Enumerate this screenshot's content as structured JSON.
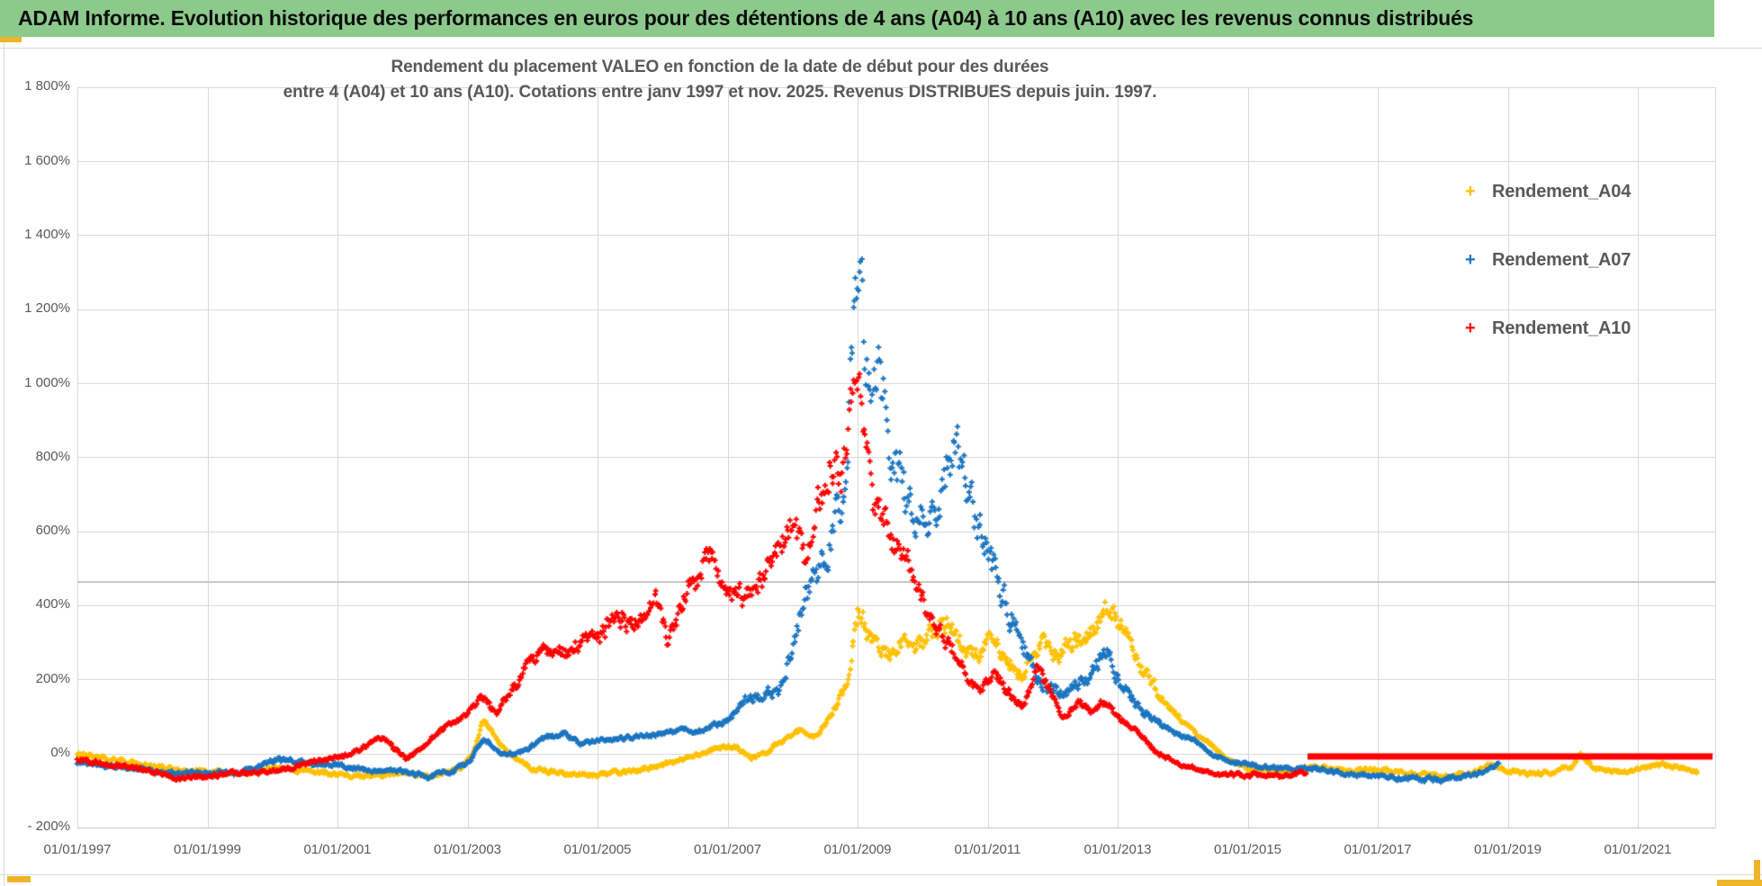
{
  "window": {
    "header_title": "ADAM Informe. Evolution historique des performances en euros pour des détentions de 4 ans (A04) à 10 ans (A10) avec les revenus connus distribués"
  },
  "colors": {
    "header_bg": "#8CCA8C",
    "grid": "#DADADA",
    "axis_text": "#595959",
    "title_text": "#595959",
    "reference_line": "#C7C7C7",
    "accent_orange": "#F0B428",
    "series_a04": "#FFC000",
    "series_a07": "#1B74C0",
    "series_a10": "#FF0000"
  },
  "chart_data": {
    "type": "scatter",
    "title": "Rendement du placement VALEO en fonction de la date de début pour des durées",
    "subtitle": "entre 4 (A04) et 10 ans (A10). Cotations entre janv 1997 et nov. 2025. Revenus DISTRIBUES depuis juin. 1997.",
    "xlabel": "",
    "ylabel": "",
    "grid": true,
    "legend_position": "right-top",
    "x_axis": {
      "tick_labels": [
        "01/01/1997",
        "01/01/1999",
        "01/01/2001",
        "01/01/2003",
        "01/01/2005",
        "01/01/2007",
        "01/01/2009",
        "01/01/2011",
        "01/01/2013",
        "01/01/2015",
        "01/01/2017",
        "01/01/2019",
        "01/01/2021"
      ],
      "tick_years": [
        1997,
        1999,
        2001,
        2003,
        2005,
        2007,
        2009,
        2011,
        2013,
        2015,
        2017,
        2019,
        2021
      ],
      "range_years": [
        1997.0,
        2022.2
      ]
    },
    "y_axis": {
      "tick_labels": [
        "1 800%",
        "1 600%",
        "1 400%",
        "1 200%",
        "1 000%",
        "800%",
        "600%",
        "400%",
        "200%",
        "0%",
        "- 200%"
      ],
      "tick_values": [
        1800,
        1600,
        1400,
        1200,
        1000,
        800,
        600,
        400,
        200,
        0,
        -200
      ],
      "range_pct": [
        -200,
        1800
      ]
    },
    "reference_line_pct": 465,
    "series": [
      {
        "name": "Rendement_A04",
        "color": "#FFC000",
        "marker": "plus",
        "start": 1997.0,
        "end": 2021.92,
        "dispersion": 0.11,
        "envelope": [
          [
            1997,
            2
          ],
          [
            1997.4,
            -12
          ],
          [
            1997.8,
            -22
          ],
          [
            1998.3,
            -36
          ],
          [
            1998.7,
            -48
          ],
          [
            1999.2,
            -50
          ],
          [
            1999.6,
            -52
          ],
          [
            2000.1,
            -38
          ],
          [
            2000.5,
            -46
          ],
          [
            2001,
            -56
          ],
          [
            2001.5,
            -60
          ],
          [
            2002,
            -52
          ],
          [
            2002.5,
            -58
          ],
          [
            2002.9,
            -40
          ],
          [
            2003.1,
            10
          ],
          [
            2003.25,
            92
          ],
          [
            2003.45,
            40
          ],
          [
            2003.7,
            -12
          ],
          [
            2004,
            -40
          ],
          [
            2004.5,
            -54
          ],
          [
            2005,
            -56
          ],
          [
            2005.5,
            -48
          ],
          [
            2006,
            -30
          ],
          [
            2006.4,
            -8
          ],
          [
            2006.8,
            12
          ],
          [
            2007.1,
            22
          ],
          [
            2007.35,
            -12
          ],
          [
            2007.6,
            5
          ],
          [
            2007.9,
            42
          ],
          [
            2008.1,
            62
          ],
          [
            2008.35,
            45
          ],
          [
            2008.6,
            105
          ],
          [
            2008.85,
            195
          ],
          [
            2009,
            385
          ],
          [
            2009.15,
            335
          ],
          [
            2009.3,
            280
          ],
          [
            2009.5,
            268
          ],
          [
            2009.7,
            298
          ],
          [
            2009.9,
            278
          ],
          [
            2010.1,
            325
          ],
          [
            2010.35,
            355
          ],
          [
            2010.6,
            300
          ],
          [
            2010.85,
            262
          ],
          [
            2011.05,
            325
          ],
          [
            2011.3,
            252
          ],
          [
            2011.55,
            215
          ],
          [
            2011.8,
            298
          ],
          [
            2012.1,
            268
          ],
          [
            2012.35,
            305
          ],
          [
            2012.6,
            338
          ],
          [
            2012.85,
            398
          ],
          [
            2013.1,
            338
          ],
          [
            2013.4,
            220
          ],
          [
            2013.7,
            148
          ],
          [
            2014,
            88
          ],
          [
            2014.3,
            40
          ],
          [
            2014.7,
            -15
          ],
          [
            2015,
            -40
          ],
          [
            2015.5,
            -52
          ],
          [
            2015.9,
            -40
          ],
          [
            2016.1,
            -36
          ],
          [
            2016.5,
            -48
          ],
          [
            2017,
            -42
          ],
          [
            2017.5,
            -54
          ],
          [
            2018,
            -60
          ],
          [
            2018.4,
            -52
          ],
          [
            2018.75,
            -30
          ],
          [
            2019,
            -46
          ],
          [
            2019.3,
            -56
          ],
          [
            2019.7,
            -48
          ],
          [
            2020,
            -32
          ],
          [
            2020.12,
            0
          ],
          [
            2020.3,
            -36
          ],
          [
            2020.6,
            -50
          ],
          [
            2021,
            -42
          ],
          [
            2021.3,
            -28
          ],
          [
            2021.6,
            -38
          ],
          [
            2021.92,
            -48
          ]
        ]
      },
      {
        "name": "Rendement_A07",
        "color": "#1B74C0",
        "marker": "plus",
        "start": 1997.0,
        "end": 2018.87,
        "dispersion": 0.125,
        "envelope": [
          [
            1997,
            -25
          ],
          [
            1997.5,
            -33
          ],
          [
            1998,
            -42
          ],
          [
            1998.5,
            -55
          ],
          [
            1999,
            -50
          ],
          [
            1999.5,
            -52
          ],
          [
            2000.05,
            -15
          ],
          [
            2000.4,
            -22
          ],
          [
            2000.7,
            -30
          ],
          [
            2001,
            -30
          ],
          [
            2001.5,
            -46
          ],
          [
            2002,
            -48
          ],
          [
            2002.4,
            -62
          ],
          [
            2002.8,
            -45
          ],
          [
            2003,
            -25
          ],
          [
            2003.25,
            40
          ],
          [
            2003.5,
            6
          ],
          [
            2003.8,
            0
          ],
          [
            2004.2,
            45
          ],
          [
            2004.5,
            55
          ],
          [
            2004.75,
            22
          ],
          [
            2005,
            38
          ],
          [
            2005.4,
            42
          ],
          [
            2005.8,
            50
          ],
          [
            2006.2,
            60
          ],
          [
            2006.6,
            64
          ],
          [
            2007,
            92
          ],
          [
            2007.25,
            150
          ],
          [
            2007.5,
            160
          ],
          [
            2007.8,
            168
          ],
          [
            2008,
            295
          ],
          [
            2008.2,
            415
          ],
          [
            2008.45,
            515
          ],
          [
            2008.7,
            640
          ],
          [
            2008.85,
            840
          ],
          [
            2008.95,
            1230
          ],
          [
            2009.02,
            1390
          ],
          [
            2009.1,
            1140
          ],
          [
            2009.2,
            980
          ],
          [
            2009.35,
            995
          ],
          [
            2009.5,
            855
          ],
          [
            2009.65,
            760
          ],
          [
            2009.8,
            700
          ],
          [
            2010,
            625
          ],
          [
            2010.2,
            648
          ],
          [
            2010.4,
            795
          ],
          [
            2010.5,
            835
          ],
          [
            2010.65,
            720
          ],
          [
            2010.8,
            640
          ],
          [
            2011,
            560
          ],
          [
            2011.15,
            470
          ],
          [
            2011.3,
            400
          ],
          [
            2011.5,
            300
          ],
          [
            2011.7,
            230
          ],
          [
            2011.95,
            172
          ],
          [
            2012.2,
            170
          ],
          [
            2012.45,
            192
          ],
          [
            2012.7,
            248
          ],
          [
            2012.85,
            268
          ],
          [
            2013,
            212
          ],
          [
            2013.3,
            130
          ],
          [
            2013.6,
            85
          ],
          [
            2013.9,
            55
          ],
          [
            2014.2,
            35
          ],
          [
            2014.5,
            -5
          ],
          [
            2014.8,
            -22
          ],
          [
            2015.2,
            -35
          ],
          [
            2015.6,
            -42
          ],
          [
            2016,
            -38
          ],
          [
            2016.4,
            -52
          ],
          [
            2016.8,
            -56
          ],
          [
            2017.2,
            -62
          ],
          [
            2017.6,
            -68
          ],
          [
            2018,
            -70
          ],
          [
            2018.3,
            -62
          ],
          [
            2018.6,
            -50
          ],
          [
            2018.87,
            -28
          ]
        ]
      },
      {
        "name": "Rendement_A10",
        "color": "#FF0000",
        "marker": "plus",
        "start": 1997.0,
        "end": 2015.9,
        "dispersion": 0.1,
        "envelope": [
          [
            1997,
            -18
          ],
          [
            1997.5,
            -28
          ],
          [
            1998,
            -40
          ],
          [
            1998.55,
            -66
          ],
          [
            1999,
            -60
          ],
          [
            1999.5,
            -50
          ],
          [
            2000,
            -48
          ],
          [
            2000.5,
            -28
          ],
          [
            2001,
            -8
          ],
          [
            2001.35,
            12
          ],
          [
            2001.7,
            45
          ],
          [
            2002.05,
            -15
          ],
          [
            2002.35,
            25
          ],
          [
            2002.7,
            80
          ],
          [
            2003,
            105
          ],
          [
            2003.2,
            150
          ],
          [
            2003.45,
            115
          ],
          [
            2003.7,
            175
          ],
          [
            2004,
            255
          ],
          [
            2004.3,
            290
          ],
          [
            2004.55,
            265
          ],
          [
            2004.8,
            318
          ],
          [
            2005.05,
            320
          ],
          [
            2005.3,
            382
          ],
          [
            2005.55,
            340
          ],
          [
            2005.9,
            405
          ],
          [
            2006.1,
            302
          ],
          [
            2006.45,
            468
          ],
          [
            2006.75,
            538
          ],
          [
            2007,
            432
          ],
          [
            2007.25,
            420
          ],
          [
            2007.5,
            468
          ],
          [
            2007.75,
            520
          ],
          [
            2008,
            645
          ],
          [
            2008.2,
            502
          ],
          [
            2008.4,
            698
          ],
          [
            2008.6,
            788
          ],
          [
            2008.75,
            702
          ],
          [
            2008.9,
            948
          ],
          [
            2009,
            1055
          ],
          [
            2009.1,
            828
          ],
          [
            2009.25,
            652
          ],
          [
            2009.4,
            640
          ],
          [
            2009.6,
            560
          ],
          [
            2009.85,
            495
          ],
          [
            2010.05,
            382
          ],
          [
            2010.25,
            330
          ],
          [
            2010.45,
            288
          ],
          [
            2010.7,
            200
          ],
          [
            2010.9,
            170
          ],
          [
            2011.1,
            212
          ],
          [
            2011.35,
            165
          ],
          [
            2011.55,
            122
          ],
          [
            2011.75,
            235
          ],
          [
            2011.95,
            172
          ],
          [
            2012.15,
            95
          ],
          [
            2012.4,
            140
          ],
          [
            2012.6,
            115
          ],
          [
            2012.8,
            140
          ],
          [
            2013,
            100
          ],
          [
            2013.3,
            60
          ],
          [
            2013.6,
            0
          ],
          [
            2014,
            -30
          ],
          [
            2014.4,
            -52
          ],
          [
            2014.8,
            -58
          ],
          [
            2015.2,
            -55
          ],
          [
            2015.55,
            -62
          ],
          [
            2015.9,
            -52
          ]
        ],
        "flat_segment": {
          "start": 2015.92,
          "end": 2022.15,
          "value": 0
        }
      }
    ]
  }
}
